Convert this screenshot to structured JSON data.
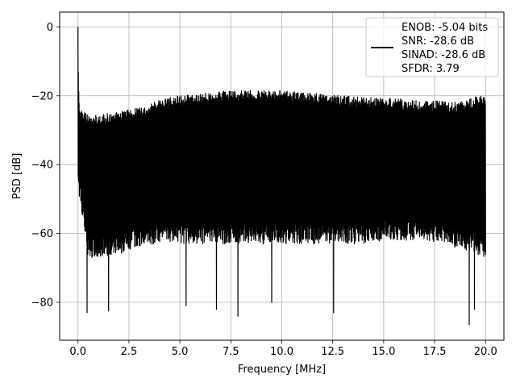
{
  "chart_data": {
    "type": "line",
    "title": "",
    "xlabel": "Frequency [MHz]",
    "ylabel": "PSD [dB]",
    "xlim": [
      -0.9,
      20.9
    ],
    "ylim": [
      -91,
      4.3
    ],
    "xticks": [
      0.0,
      2.5,
      5.0,
      7.5,
      10.0,
      12.5,
      15.0,
      17.5,
      20.0
    ],
    "xtick_labels": [
      "0.0",
      "2.5",
      "5.0",
      "7.5",
      "10.0",
      "12.5",
      "15.0",
      "17.5",
      "20.0"
    ],
    "yticks": [
      0,
      -20,
      -40,
      -60,
      -80
    ],
    "ytick_labels": [
      "0",
      "−20",
      "−40",
      "−60",
      "−80"
    ],
    "grid": true,
    "legend_position": "top-right",
    "legend_entries": [
      "ENOB: -5.04 bits",
      "SNR: -28.6 dB",
      "SINAD: -28.6 dB",
      "SFDR: 3.79"
    ],
    "series": [
      {
        "color": "#000000",
        "x_range": [
          0,
          20
        ],
        "peak": {
          "x": 0.0,
          "y": 0.0
        },
        "upper_envelope": {
          "x": [
            0.0,
            0.03,
            0.1,
            0.5,
            1.0,
            1.5,
            2.0,
            2.5,
            3.0,
            3.5,
            4.0,
            5.0,
            6.0,
            7.0,
            8.0,
            9.0,
            10.0,
            11.0,
            12.0,
            13.0,
            14.0,
            15.0,
            16.0,
            17.0,
            18.0,
            19.0,
            20.0
          ],
          "y": [
            0.0,
            -17,
            -24,
            -25.5,
            -25.5,
            -25,
            -24.5,
            -24,
            -23.5,
            -22.5,
            -21,
            -20,
            -19.5,
            -18.5,
            -18.5,
            -18.5,
            -18.5,
            -19,
            -19.5,
            -20,
            -20.5,
            -20.5,
            -21,
            -21.5,
            -21.5,
            -21.5,
            -19
          ]
        },
        "lower_envelope": {
          "x": [
            0.0,
            0.5,
            1.0,
            2.0,
            3.0,
            4.0,
            5.0,
            6.0,
            7.0,
            8.0,
            9.0,
            10.0,
            11.0,
            12.0,
            13.0,
            14.0,
            15.0,
            16.0,
            17.0,
            18.0,
            19.0,
            20.0
          ],
          "y": [
            -47,
            -67,
            -67,
            -66,
            -64,
            -63,
            -63,
            -63,
            -63,
            -63,
            -63,
            -63,
            -63,
            -63,
            -63,
            -63,
            -62,
            -62,
            -62,
            -63,
            -65,
            -67
          ]
        },
        "deep_dips": [
          {
            "x": 0.45,
            "y": -83
          },
          {
            "x": 1.5,
            "y": -82.5
          },
          {
            "x": 5.3,
            "y": -81
          },
          {
            "x": 6.8,
            "y": -82
          },
          {
            "x": 7.85,
            "y": -84
          },
          {
            "x": 9.5,
            "y": -80
          },
          {
            "x": 12.55,
            "y": -83
          },
          {
            "x": 19.2,
            "y": -86.5
          },
          {
            "x": 19.45,
            "y": -82
          }
        ]
      }
    ]
  }
}
